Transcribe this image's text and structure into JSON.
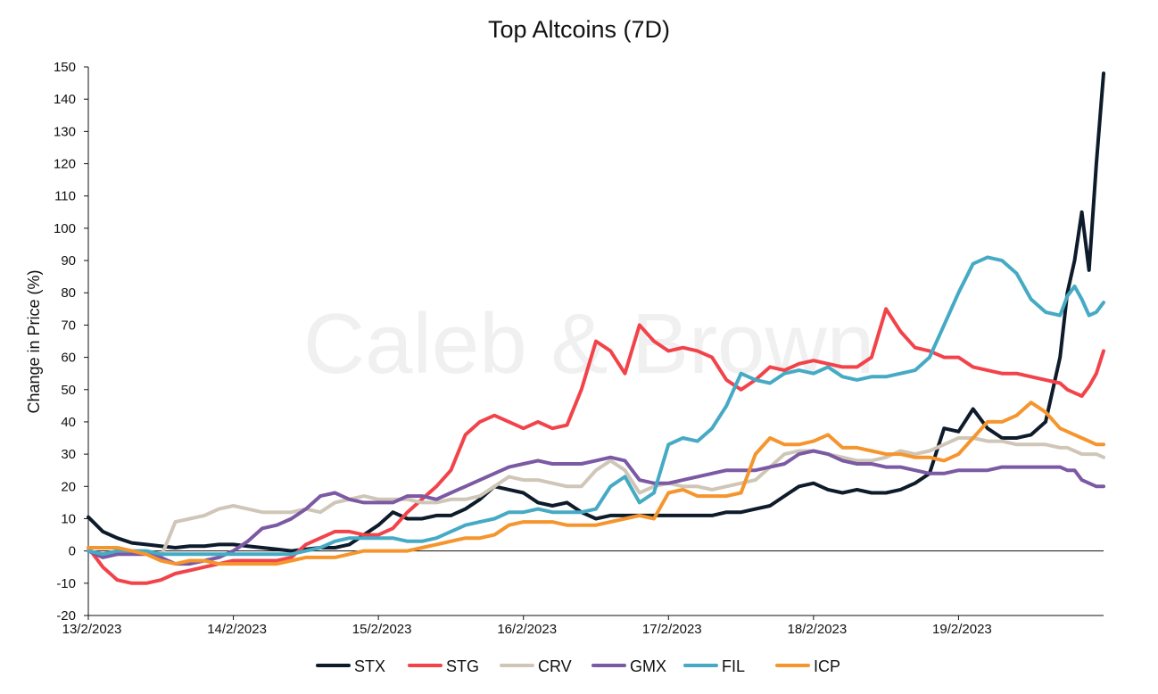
{
  "chart_data": {
    "type": "line",
    "title": "Top Altcoins (7D)",
    "ylabel": "Change in Price (%)",
    "xlabel": "",
    "watermark": "Caleb & Brown",
    "ylim": [
      -20,
      150
    ],
    "yticks": [
      "150",
      "140",
      "130",
      "120",
      "110",
      "100",
      "90",
      "80",
      "70",
      "60",
      "50",
      "40",
      "30",
      "20",
      "10",
      "0",
      "-10",
      "-20"
    ],
    "ytick_values": [
      150,
      140,
      130,
      120,
      110,
      100,
      90,
      80,
      70,
      60,
      50,
      40,
      30,
      20,
      10,
      0,
      -10,
      -20
    ],
    "xlim": [
      0,
      7
    ],
    "xticks": [
      "13/2/2023",
      "14/2/2023",
      "15/2/2023",
      "16/2/2023",
      "17/2/2023",
      "18/2/2023",
      "19/2/2023"
    ],
    "xtick_values": [
      0,
      1,
      2,
      3,
      4,
      5,
      6
    ],
    "x": [
      0,
      0.1,
      0.2,
      0.3,
      0.4,
      0.5,
      0.6,
      0.7,
      0.8,
      0.9,
      1.0,
      1.1,
      1.2,
      1.3,
      1.4,
      1.5,
      1.6,
      1.7,
      1.8,
      1.9,
      2.0,
      2.1,
      2.2,
      2.3,
      2.4,
      2.5,
      2.6,
      2.7,
      2.8,
      2.9,
      3.0,
      3.1,
      3.2,
      3.3,
      3.4,
      3.5,
      3.6,
      3.7,
      3.8,
      3.9,
      4.0,
      4.1,
      4.2,
      4.3,
      4.4,
      4.5,
      4.6,
      4.7,
      4.8,
      4.9,
      5.0,
      5.1,
      5.2,
      5.3,
      5.4,
      5.5,
      5.6,
      5.7,
      5.8,
      5.9,
      6.0,
      6.1,
      6.2,
      6.3,
      6.4,
      6.5,
      6.6,
      6.7,
      6.75,
      6.8,
      6.85,
      6.9,
      6.95,
      7.0
    ],
    "series": [
      {
        "name": "STX",
        "color": "#0d1b2a",
        "values": [
          10.5,
          6,
          4,
          2.5,
          2,
          1.5,
          1,
          1.5,
          1.5,
          2,
          2,
          1.5,
          1,
          0.5,
          0,
          0.5,
          1,
          1,
          2,
          5,
          8,
          12,
          10,
          10,
          11,
          11,
          13,
          16,
          20,
          19,
          18,
          15,
          14,
          15,
          12,
          10,
          11,
          11,
          11,
          11,
          11,
          11,
          11,
          11,
          12,
          12,
          13,
          14,
          17,
          20,
          21,
          19,
          18,
          19,
          18,
          18,
          19,
          21,
          24,
          38,
          37,
          44,
          38,
          35,
          35,
          36,
          40,
          60,
          80,
          90,
          105,
          87,
          120,
          148
        ]
      },
      {
        "name": "STG",
        "color": "#f2434a",
        "values": [
          1,
          -5,
          -9,
          -10,
          -10,
          -9,
          -7,
          -6,
          -5,
          -4,
          -3,
          -3,
          -3,
          -3,
          -2,
          2,
          4,
          6,
          6,
          5,
          5,
          7,
          12,
          16,
          20,
          25,
          36,
          40,
          42,
          40,
          38,
          40,
          38,
          39,
          50,
          65,
          62,
          55,
          70,
          65,
          62,
          63,
          62,
          60,
          53,
          50,
          53,
          57,
          56,
          58,
          59,
          58,
          57,
          57,
          60,
          75,
          68,
          63,
          62,
          60,
          60,
          57,
          56,
          55,
          55,
          54,
          53,
          52,
          50,
          49,
          48,
          51,
          55,
          62
        ]
      },
      {
        "name": "CRV",
        "color": "#cfc6b8",
        "values": [
          0,
          -1,
          0,
          0,
          -1,
          -2,
          9,
          10,
          11,
          13,
          14,
          13,
          12,
          12,
          12,
          13,
          12,
          15,
          16,
          17,
          16,
          16,
          16,
          15,
          15,
          16,
          16,
          17,
          20,
          23,
          22,
          22,
          21,
          20,
          20,
          25,
          28,
          25,
          18,
          20,
          21,
          20,
          20,
          19,
          20,
          21,
          22,
          26,
          30,
          31,
          31,
          30,
          29,
          28,
          28,
          29,
          31,
          30,
          31,
          33,
          35,
          35,
          34,
          34,
          33,
          33,
          33,
          32,
          32,
          31,
          30,
          30,
          30,
          29
        ]
      },
      {
        "name": "GMX",
        "color": "#7b59a3",
        "values": [
          0,
          -2,
          -1,
          -1,
          -1,
          -2,
          -4,
          -4,
          -3,
          -2,
          0,
          3,
          7,
          8,
          10,
          13,
          17,
          18,
          16,
          15,
          15,
          15,
          17,
          17,
          16,
          18,
          20,
          22,
          24,
          26,
          27,
          28,
          27,
          27,
          27,
          28,
          29,
          28,
          22,
          21,
          21,
          22,
          23,
          24,
          25,
          25,
          25,
          26,
          27,
          30,
          31,
          30,
          28,
          27,
          27,
          26,
          26,
          25,
          24,
          24,
          25,
          25,
          25,
          26,
          26,
          26,
          26,
          26,
          25,
          25,
          22,
          21,
          20,
          20
        ]
      },
      {
        "name": "FIL",
        "color": "#46aac4",
        "values": [
          0,
          -1,
          0,
          0,
          0,
          -1,
          -1,
          -1,
          -1,
          -1,
          -1,
          -1,
          -1,
          -1,
          -1,
          0,
          1,
          3,
          4,
          4,
          4,
          4,
          3,
          3,
          4,
          6,
          8,
          9,
          10,
          12,
          12,
          13,
          12,
          12,
          12,
          13,
          20,
          23,
          15,
          18,
          33,
          35,
          34,
          38,
          45,
          55,
          53,
          52,
          55,
          56,
          55,
          57,
          54,
          53,
          54,
          54,
          55,
          56,
          60,
          70,
          80,
          89,
          91,
          90,
          86,
          78,
          74,
          73,
          79,
          82,
          78,
          73,
          74,
          77
        ]
      },
      {
        "name": "ICP",
        "color": "#f5952e",
        "values": [
          1,
          1,
          1,
          0,
          -1,
          -3,
          -4,
          -3,
          -3,
          -4,
          -4,
          -4,
          -4,
          -4,
          -3,
          -2,
          -2,
          -2,
          -1,
          0,
          0,
          0,
          0,
          1,
          2,
          3,
          4,
          4,
          5,
          8,
          9,
          9,
          9,
          8,
          8,
          8,
          9,
          10,
          11,
          10,
          18,
          19,
          17,
          17,
          17,
          18,
          30,
          35,
          33,
          33,
          34,
          36,
          32,
          32,
          31,
          30,
          30,
          29,
          29,
          28,
          30,
          35,
          40,
          40,
          42,
          46,
          43,
          38,
          37,
          36,
          35,
          34,
          33,
          33
        ]
      }
    ]
  }
}
